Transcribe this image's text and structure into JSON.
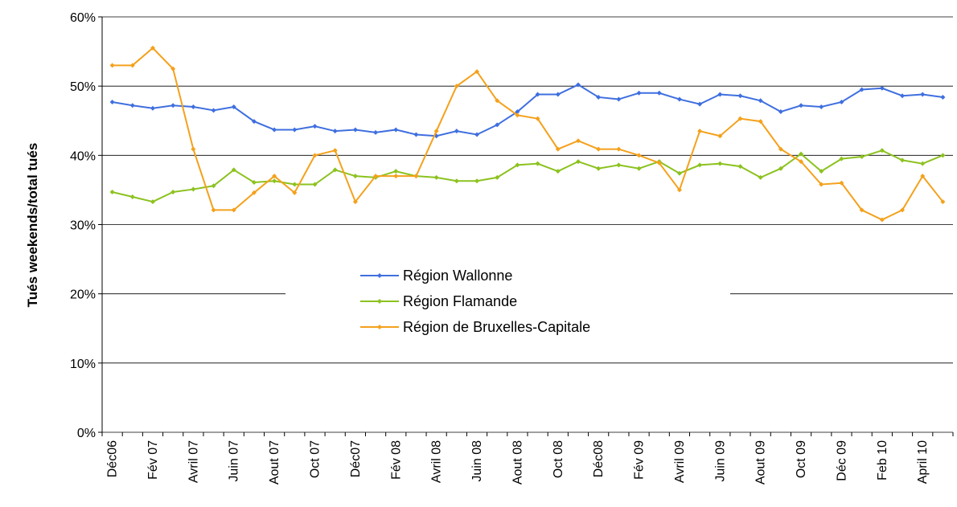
{
  "chart_data": {
    "type": "line",
    "y_label": "Tués weekends/total tués",
    "categories": [
      "Déc06",
      null,
      "Fév 07",
      null,
      "Avril 07",
      null,
      "Juin 07",
      null,
      "Aout 07",
      null,
      "Oct 07",
      null,
      "Déc07",
      null,
      "Fév 08",
      null,
      "Avril 08",
      null,
      "Juin 08",
      null,
      "Aout 08",
      null,
      "Oct 08",
      null,
      "Déc08",
      null,
      "Fév 09",
      null,
      "Avril 09",
      null,
      "Juin 09",
      null,
      "Aout 09",
      null,
      "Oct 09",
      null,
      "Déc 09",
      null,
      "Feb 10",
      null,
      "April 10",
      null
    ],
    "series": [
      {
        "name": "Région Wallonne",
        "color": "#3f6fdf",
        "values": [
          47.7,
          47.2,
          46.8,
          47.2,
          47.0,
          46.5,
          47.0,
          44.9,
          43.7,
          43.7,
          44.2,
          43.5,
          43.7,
          43.3,
          43.7,
          43.0,
          42.8,
          43.5,
          43.0,
          44.4,
          46.3,
          48.8,
          48.8,
          50.2,
          48.4,
          48.1,
          49.0,
          49.0,
          48.1,
          47.4,
          48.8,
          48.6,
          47.9,
          46.3,
          47.2,
          47.0,
          47.7,
          49.5,
          49.7,
          48.6,
          48.8,
          48.4
        ]
      },
      {
        "name": "Région Flamande",
        "color": "#8cc21f",
        "values": [
          34.7,
          34.0,
          33.3,
          34.7,
          35.1,
          35.6,
          37.9,
          36.1,
          36.3,
          35.8,
          35.8,
          37.9,
          37.0,
          36.8,
          37.7,
          37.0,
          36.8,
          36.3,
          36.3,
          36.8,
          38.6,
          38.8,
          37.7,
          39.1,
          38.1,
          38.6,
          38.1,
          39.1,
          37.4,
          38.6,
          38.8,
          38.4,
          36.8,
          38.1,
          40.2,
          37.7,
          39.5,
          39.8,
          40.7,
          39.3,
          38.8,
          40.0
        ]
      },
      {
        "name": "Région de Bruxelles-Capitale",
        "color": "#f4a11c",
        "values": [
          53.0,
          53.0,
          55.5,
          52.5,
          40.9,
          32.1,
          32.1,
          34.6,
          37.0,
          34.6,
          40.0,
          40.7,
          33.3,
          37.0,
          37.0,
          37.0,
          43.5,
          50.0,
          52.1,
          47.9,
          45.8,
          45.3,
          40.9,
          42.1,
          40.9,
          40.9,
          40.0,
          38.9,
          35.0,
          43.5,
          42.8,
          45.3,
          44.9,
          40.9,
          39.1,
          35.8,
          36.0,
          32.1,
          30.7,
          32.1,
          37.0,
          33.3
        ]
      }
    ],
    "ylim": [
      0,
      60
    ],
    "yticks": [
      {
        "value": 0,
        "label": "0%"
      },
      {
        "value": 10,
        "label": "10%"
      },
      {
        "value": 20,
        "label": "20%"
      },
      {
        "value": 30,
        "label": "30%"
      },
      {
        "value": 40,
        "label": "40%"
      },
      {
        "value": 50,
        "label": "50%"
      },
      {
        "value": 60,
        "label": "60%"
      }
    ],
    "grid": true
  }
}
